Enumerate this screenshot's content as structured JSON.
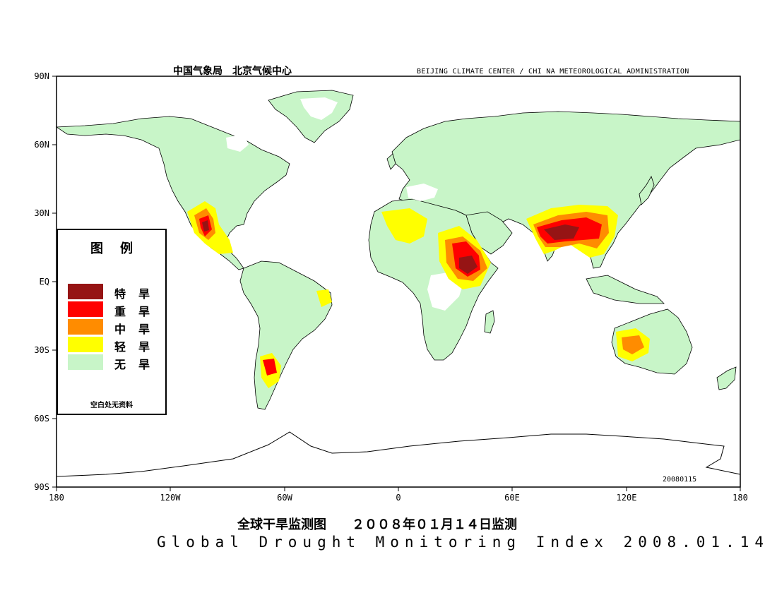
{
  "header": {
    "left_cn": "中国气象局　北京气候中心",
    "right_en": "BEIJING CLIMATE CENTER / CHI NA METEOROLOGICAL ADMINISTRATION"
  },
  "axes": {
    "lat_labels": [
      "90N",
      "60N",
      "30N",
      "EQ",
      "30S",
      "60S",
      "90S"
    ],
    "lon_labels": [
      "180",
      "120W",
      "60W",
      "0",
      "60E",
      "120E",
      "180"
    ]
  },
  "legend": {
    "title": "图例",
    "items": [
      {
        "label": "特旱",
        "color": "#961414"
      },
      {
        "label": "重旱",
        "color": "#ff0000"
      },
      {
        "label": "中旱",
        "color": "#ff8c00"
      },
      {
        "label": "轻旱",
        "color": "#ffff00"
      },
      {
        "label": "无旱",
        "color": "#c8f5c8"
      }
    ],
    "note": "空白处无资料"
  },
  "date_stamp": "20080115",
  "footer": {
    "title_cn": "全球干旱监测图　　２００８年０１月１４日监测",
    "title_en": "Global Drought Monitoring Index  2008.01.14"
  }
}
